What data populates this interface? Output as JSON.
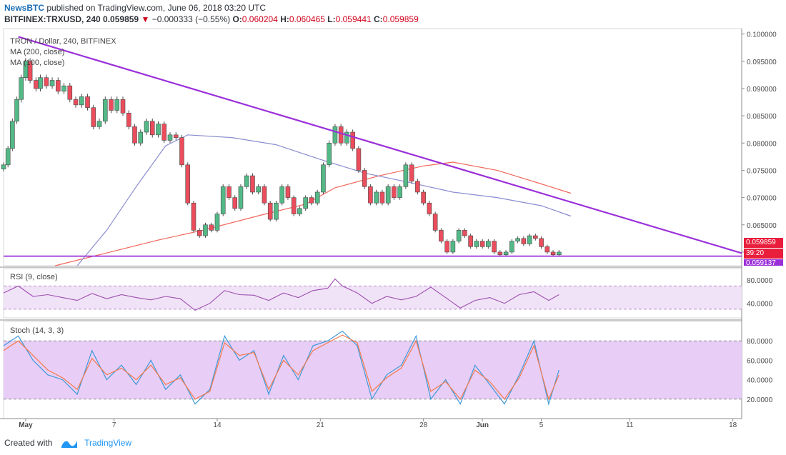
{
  "header": {
    "brand": "NewsBTC",
    "published": "published on TradingView.com, June 06, 2018 03:20 UTC",
    "symbol": "BITFINEX:TRXUSD, 240",
    "last": "0.059859",
    "arrow": "▼",
    "change": "−0.000333 (−0.55%)",
    "o_label": "O:",
    "o_val": "0.060204",
    "h_label": "H:",
    "h_val": "0.060465",
    "l_label": "L:",
    "l_val": "0.059441",
    "c_label": "C:",
    "c_val": "0.059859"
  },
  "legend": {
    "title": "TRON / Dollar, 240, BITFINEX",
    "ma200": "MA (200, close)",
    "ma100": "MA (100, close)"
  },
  "rsi_label": "RSI (9, close)",
  "stoch_label": "Stoch (14, 3, 3)",
  "price_badge": "0.059859",
  "countdown_badge": "39:20",
  "support_badge": "0.059137",
  "footer": {
    "created": "Created with",
    "brand": "TradingView"
  },
  "colors": {
    "up": "#53b987",
    "down": "#eb4d5c",
    "trendline": "#9b30d9",
    "ma_red": "#f0665a",
    "ma_blue": "#8a8cd0",
    "rsi": "#9c4fb0",
    "rsi_band": "#f1e3f7",
    "stoch_band": "#e8cdf7",
    "stoch_k": "#3e9bd8",
    "stoch_d": "#f57a4a",
    "badge_red": "#e81e3c",
    "badge_purple": "#9b30d9"
  },
  "chart_data": [
    {
      "type": "candlestick",
      "title": "TRON / Dollar, 240, BITFINEX",
      "x_ticks": [
        "May",
        "7",
        "14",
        "21",
        "28",
        "Jun",
        "5",
        "11",
        "18"
      ],
      "y_ticks": [
        "0.100000",
        "0.095000",
        "0.090000",
        "0.085000",
        "0.080000",
        "0.075000",
        "0.070000",
        "0.065000",
        "0.060000"
      ],
      "ylim": [
        0.0575,
        0.101
      ],
      "x_range_days": [
        -1.5,
        48.6
      ],
      "candles": [
        {
          "d": -1.5,
          "c": 0.076
        },
        {
          "d": -1.2,
          "c": 0.079
        },
        {
          "d": -0.9,
          "c": 0.084
        },
        {
          "d": -0.6,
          "c": 0.088
        },
        {
          "d": -0.3,
          "c": 0.092
        },
        {
          "d": 0.0,
          "c": 0.095
        },
        {
          "d": 0.3,
          "c": 0.0915
        },
        {
          "d": 0.7,
          "c": 0.09
        },
        {
          "d": 1.0,
          "c": 0.092
        },
        {
          "d": 1.4,
          "c": 0.0905
        },
        {
          "d": 1.8,
          "c": 0.0915
        },
        {
          "d": 2.2,
          "c": 0.0895
        },
        {
          "d": 2.6,
          "c": 0.0905
        },
        {
          "d": 3.0,
          "c": 0.088
        },
        {
          "d": 3.4,
          "c": 0.087
        },
        {
          "d": 3.8,
          "c": 0.0885
        },
        {
          "d": 4.2,
          "c": 0.0865
        },
        {
          "d": 4.6,
          "c": 0.083
        },
        {
          "d": 5.0,
          "c": 0.084
        },
        {
          "d": 5.4,
          "c": 0.088
        },
        {
          "d": 5.8,
          "c": 0.086
        },
        {
          "d": 6.2,
          "c": 0.088
        },
        {
          "d": 6.6,
          "c": 0.0855
        },
        {
          "d": 7.0,
          "c": 0.083
        },
        {
          "d": 7.4,
          "c": 0.08
        },
        {
          "d": 7.8,
          "c": 0.082
        },
        {
          "d": 8.2,
          "c": 0.084
        },
        {
          "d": 8.6,
          "c": 0.0815
        },
        {
          "d": 9.0,
          "c": 0.0835
        },
        {
          "d": 9.4,
          "c": 0.0805
        },
        {
          "d": 9.8,
          "c": 0.0815
        },
        {
          "d": 10.2,
          "c": 0.081
        },
        {
          "d": 10.6,
          "c": 0.076
        },
        {
          "d": 11.0,
          "c": 0.069
        },
        {
          "d": 11.4,
          "c": 0.064
        },
        {
          "d": 11.8,
          "c": 0.063
        },
        {
          "d": 12.2,
          "c": 0.065
        },
        {
          "d": 12.6,
          "c": 0.064
        },
        {
          "d": 13.0,
          "c": 0.067
        },
        {
          "d": 13.4,
          "c": 0.072
        },
        {
          "d": 13.8,
          "c": 0.07
        },
        {
          "d": 14.2,
          "c": 0.068
        },
        {
          "d": 14.6,
          "c": 0.072
        },
        {
          "d": 15.0,
          "c": 0.074
        },
        {
          "d": 15.4,
          "c": 0.071
        },
        {
          "d": 15.8,
          "c": 0.072
        },
        {
          "d": 16.2,
          "c": 0.069
        },
        {
          "d": 16.6,
          "c": 0.066
        },
        {
          "d": 17.0,
          "c": 0.069
        },
        {
          "d": 17.4,
          "c": 0.072
        },
        {
          "d": 17.8,
          "c": 0.07
        },
        {
          "d": 18.2,
          "c": 0.067
        },
        {
          "d": 18.6,
          "c": 0.068
        },
        {
          "d": 19.0,
          "c": 0.07
        },
        {
          "d": 19.4,
          "c": 0.069
        },
        {
          "d": 19.8,
          "c": 0.071
        },
        {
          "d": 20.2,
          "c": 0.076
        },
        {
          "d": 20.6,
          "c": 0.08
        },
        {
          "d": 21.0,
          "c": 0.083
        },
        {
          "d": 21.4,
          "c": 0.08
        },
        {
          "d": 21.8,
          "c": 0.082
        },
        {
          "d": 22.2,
          "c": 0.079
        },
        {
          "d": 22.6,
          "c": 0.075
        },
        {
          "d": 23.0,
          "c": 0.072
        },
        {
          "d": 23.4,
          "c": 0.069
        },
        {
          "d": 23.8,
          "c": 0.071
        },
        {
          "d": 24.2,
          "c": 0.069
        },
        {
          "d": 24.6,
          "c": 0.072
        },
        {
          "d": 25.0,
          "c": 0.07
        },
        {
          "d": 25.4,
          "c": 0.072
        },
        {
          "d": 25.8,
          "c": 0.076
        },
        {
          "d": 26.2,
          "c": 0.073
        },
        {
          "d": 26.6,
          "c": 0.071
        },
        {
          "d": 27.0,
          "c": 0.069
        },
        {
          "d": 27.4,
          "c": 0.067
        },
        {
          "d": 27.8,
          "c": 0.064
        },
        {
          "d": 28.2,
          "c": 0.062
        },
        {
          "d": 28.6,
          "c": 0.06
        },
        {
          "d": 29.0,
          "c": 0.062
        },
        {
          "d": 29.4,
          "c": 0.064
        },
        {
          "d": 29.8,
          "c": 0.063
        },
        {
          "d": 30.2,
          "c": 0.061
        },
        {
          "d": 30.6,
          "c": 0.062
        },
        {
          "d": 31.0,
          "c": 0.061
        },
        {
          "d": 31.4,
          "c": 0.062
        },
        {
          "d": 31.8,
          "c": 0.06
        },
        {
          "d": 32.2,
          "c": 0.0595
        },
        {
          "d": 32.6,
          "c": 0.06
        },
        {
          "d": 33.0,
          "c": 0.062
        },
        {
          "d": 33.4,
          "c": 0.0625
        },
        {
          "d": 33.8,
          "c": 0.0615
        },
        {
          "d": 34.2,
          "c": 0.063
        },
        {
          "d": 34.6,
          "c": 0.0625
        },
        {
          "d": 35.0,
          "c": 0.061
        },
        {
          "d": 35.4,
          "c": 0.06
        },
        {
          "d": 35.8,
          "c": 0.0595
        },
        {
          "d": 36.2,
          "c": 0.06
        }
      ],
      "ma200_points": [
        [
          2.0,
          0.0575
        ],
        [
          5.0,
          0.0595
        ],
        [
          9.0,
          0.0622
        ],
        [
          12.0,
          0.064
        ],
        [
          16.0,
          0.0668
        ],
        [
          19.0,
          0.0688
        ],
        [
          21.0,
          0.0718
        ],
        [
          24.0,
          0.074
        ],
        [
          27.0,
          0.0758
        ],
        [
          29.0,
          0.0765
        ],
        [
          32.0,
          0.075
        ],
        [
          35.0,
          0.0725
        ],
        [
          37.0,
          0.0708
        ]
      ],
      "ma100_points": [
        [
          3.5,
          0.0575
        ],
        [
          5.5,
          0.064
        ],
        [
          7.5,
          0.072
        ],
        [
          9.5,
          0.0795
        ],
        [
          11.0,
          0.0815
        ],
        [
          14.0,
          0.081
        ],
        [
          17.0,
          0.0797
        ],
        [
          20.0,
          0.077
        ],
        [
          23.0,
          0.0745
        ],
        [
          26.0,
          0.0728
        ],
        [
          29.0,
          0.071
        ],
        [
          32.0,
          0.07
        ],
        [
          35.0,
          0.0685
        ],
        [
          37.0,
          0.0666
        ]
      ],
      "trendline": [
        [
          -0.5,
          0.0995
        ],
        [
          48.6,
          0.0598
        ]
      ],
      "support_line": 0.05925
    },
    {
      "type": "line",
      "title": "RSI (9, close)",
      "y_ticks": [
        "80.0000",
        "40.0000"
      ],
      "ylim": [
        15,
        100
      ],
      "bands": [
        70,
        30
      ],
      "x": [
        -1.5,
        -0.5,
        0.5,
        1.5,
        2.5,
        3.5,
        4.5,
        5.5,
        6.5,
        7.5,
        8.5,
        9.5,
        10.5,
        11.5,
        12.5,
        13.5,
        14.5,
        15.5,
        16.5,
        17.5,
        18.5,
        19.5,
        20.5,
        21.0,
        21.5,
        22.5,
        23.5,
        24.5,
        25.5,
        26.5,
        27.5,
        28.5,
        29.5,
        30.5,
        31.5,
        32.5,
        33.5,
        34.5,
        35.5,
        36.2
      ],
      "values": [
        58,
        70,
        52,
        55,
        50,
        45,
        57,
        48,
        55,
        50,
        46,
        52,
        48,
        28,
        40,
        62,
        55,
        54,
        45,
        58,
        50,
        62,
        66,
        82,
        70,
        58,
        40,
        52,
        46,
        52,
        68,
        50,
        32,
        45,
        50,
        40,
        55,
        60,
        45,
        55
      ]
    },
    {
      "type": "line",
      "title": "Stoch (14, 3, 3)",
      "y_ticks": [
        "80.0000",
        "60.0000",
        "40.0000",
        "20.0000"
      ],
      "ylim": [
        0,
        100
      ],
      "bands": [
        80,
        20
      ],
      "x": [
        -1.5,
        -0.5,
        0.5,
        1.5,
        2.5,
        3.5,
        4.5,
        5.5,
        6.5,
        7.5,
        8.5,
        9.5,
        10.5,
        11.5,
        12.5,
        13.5,
        14.5,
        15.5,
        16.5,
        17.5,
        18.5,
        19.5,
        20.5,
        21.5,
        22.5,
        23.5,
        24.5,
        25.5,
        26.5,
        27.5,
        28.5,
        29.5,
        30.5,
        31.5,
        32.5,
        33.5,
        34.5,
        35.5,
        36.2
      ],
      "series": [
        {
          "values": [
            75,
            85,
            60,
            45,
            40,
            25,
            70,
            40,
            55,
            35,
            60,
            30,
            45,
            15,
            30,
            85,
            60,
            70,
            25,
            65,
            40,
            75,
            80,
            90,
            75,
            20,
            45,
            55,
            85,
            20,
            40,
            15,
            55,
            35,
            15,
            45,
            80,
            15,
            50
          ]
        },
        {
          "values": [
            70,
            80,
            65,
            50,
            42,
            30,
            62,
            45,
            52,
            40,
            55,
            35,
            42,
            20,
            28,
            78,
            65,
            68,
            30,
            60,
            45,
            70,
            78,
            86,
            78,
            28,
            42,
            52,
            80,
            28,
            38,
            20,
            50,
            38,
            20,
            42,
            75,
            20,
            45
          ]
        }
      ]
    }
  ]
}
